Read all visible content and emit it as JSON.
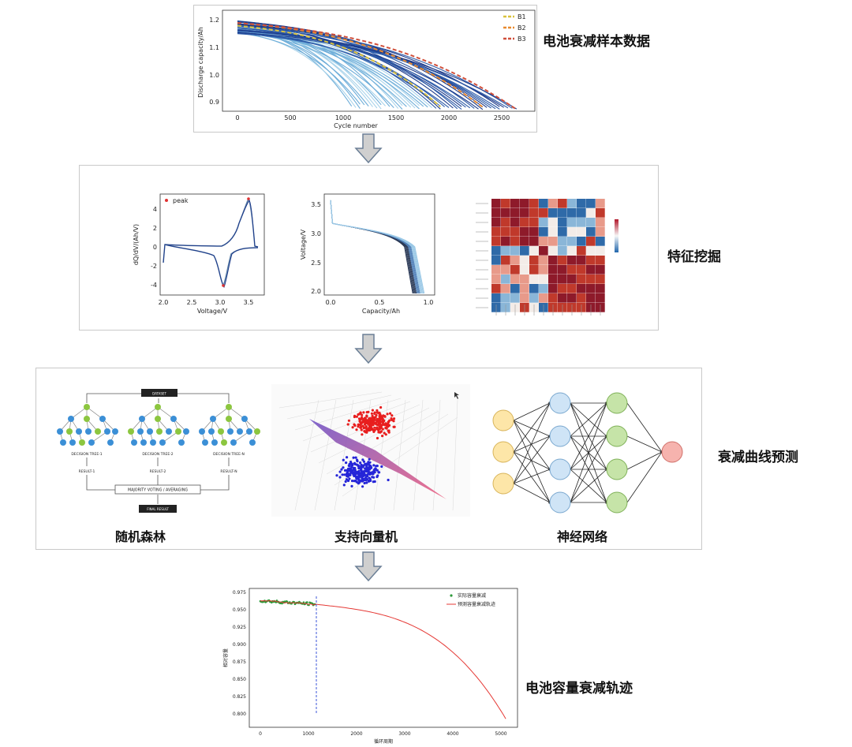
{
  "stages": {
    "s1": {
      "label": "电池衰减样本数据"
    },
    "s2": {
      "label": "特征挖掘"
    },
    "s3": {
      "label": "衰减曲线预测"
    },
    "s4": {
      "label": "电池容量衰减轨迹"
    }
  },
  "models": {
    "rf": "随机森林",
    "svm": "支持向量机",
    "nn": "神经网络"
  },
  "chart1": {
    "ylabel": "Discharge capacity/Ah",
    "xlabel": "Cycle number",
    "yticks": [
      "1.2",
      "1.1",
      "1.0",
      "0.9"
    ],
    "xticks": [
      "0",
      "500",
      "1000",
      "1500",
      "2000",
      "2500"
    ],
    "legend": [
      "B1",
      "B2",
      "B3"
    ],
    "colors": {
      "legend_b1": "#d9c13c",
      "legend_b2": "#e98a2f",
      "legend_b3": "#d04f3a",
      "curve_dark": "#1d3a8a",
      "curve_light": "#8cc6e6"
    }
  },
  "chart2": {
    "ylabel": "dQ/dV/(Ah/V)",
    "xlabel": "Voltage/V",
    "yticks": [
      "4",
      "2",
      "0",
      "-2",
      "-4"
    ],
    "xticks": [
      "2.0",
      "2.5",
      "3.0",
      "3.5"
    ],
    "legend": "peak"
  },
  "chart3": {
    "ylabel": "Voltage/V",
    "xlabel": "Capacity/Ah",
    "yticks": [
      "3.5",
      "3.0",
      "2.5",
      "2.0"
    ],
    "xticks": [
      "0.0",
      "0.5",
      "1.0"
    ]
  },
  "rf": {
    "dataset": "DATASET",
    "trees": [
      "DECISION TREE-1",
      "DECISION TREE-2",
      "DECISION TREE-N"
    ],
    "results": [
      "RESULT-1",
      "RESULT-2",
      "RESULT-N"
    ],
    "vote": "MAJORITY VOTING / AVERAGING",
    "final": "FINAL RESULT"
  },
  "chart4": {
    "ylabel": "相对容量",
    "xlabel": "循环周期",
    "yticks": [
      "0.975",
      "0.950",
      "0.925",
      "0.900",
      "0.875",
      "0.850",
      "0.825",
      "0.800"
    ],
    "xticks": [
      "0",
      "1000",
      "2000",
      "3000",
      "4000",
      "5000"
    ],
    "legend": [
      "实际容量衰减",
      "预测容量衰减轨迹"
    ]
  }
}
